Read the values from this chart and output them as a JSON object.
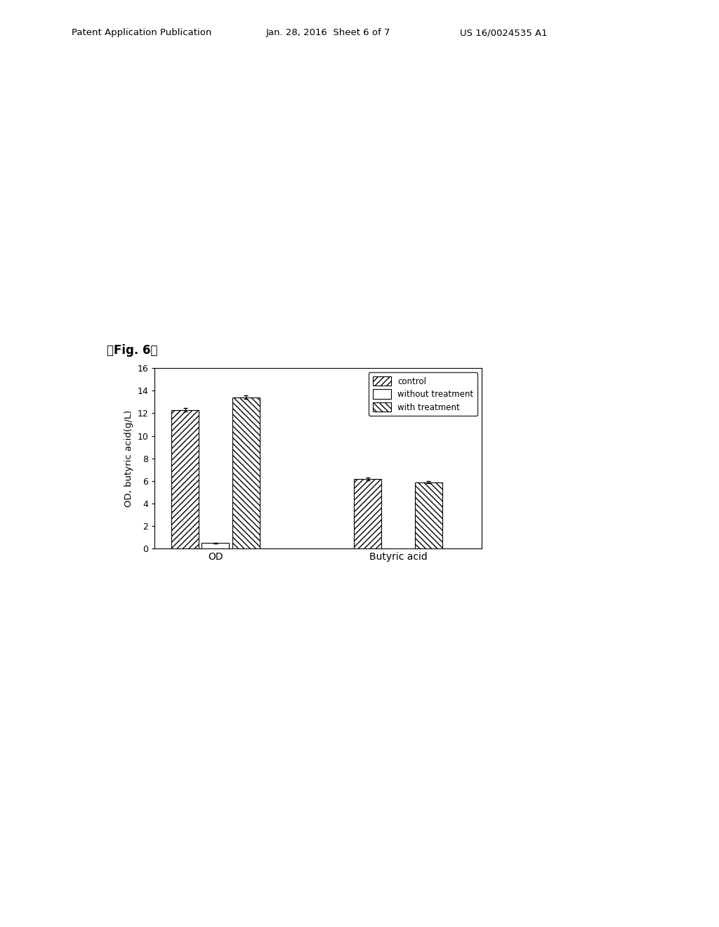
{
  "groups": [
    "OD",
    "Butyric acid"
  ],
  "series": [
    "control",
    "without treatment",
    "with treatment"
  ],
  "values": {
    "control": [
      12.3,
      6.2
    ],
    "without treatment": [
      0.5,
      0.0
    ],
    "with treatment": [
      13.4,
      5.9
    ]
  },
  "errors": {
    "control": [
      0.15,
      0.12
    ],
    "without treatment": [
      0.05,
      0.0
    ],
    "with treatment": [
      0.15,
      0.1
    ]
  },
  "hatches": [
    "////",
    "",
    "\\\\\\\\"
  ],
  "bar_colors": [
    "white",
    "white",
    "white"
  ],
  "bar_edgecolors": [
    "black",
    "black",
    "black"
  ],
  "ylim": [
    0,
    16
  ],
  "yticks": [
    0,
    2,
    4,
    6,
    8,
    10,
    12,
    14,
    16
  ],
  "ylabel": "OD, butyric acid(g/L)",
  "xlabel_groups": [
    "OD",
    "Butyric acid"
  ],
  "legend_labels": [
    "control",
    "without treatment",
    "with treatment"
  ],
  "fig_label": "【Fig. 6】",
  "header_left": "Patent Application Publication",
  "header_mid": "Jan. 28, 2016  Sheet 6 of 7",
  "header_right": "US 16/0024535 A1",
  "bar_width": 0.2,
  "group_positions": [
    1.0,
    2.2
  ]
}
